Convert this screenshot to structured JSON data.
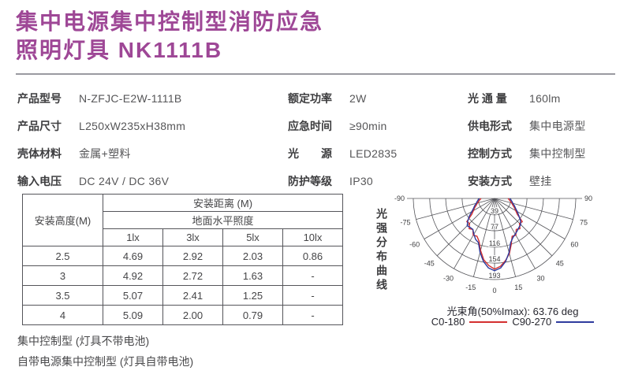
{
  "title": {
    "line1": "集中电源集中控制型消防应急",
    "line2": "照明灯具 NK1111B"
  },
  "specs": [
    {
      "label": "产品型号",
      "value": "N-ZFJC-E2W-1111B"
    },
    {
      "label": "额定功率",
      "value": "2W"
    },
    {
      "label": "光 通 量",
      "value": "160lm"
    },
    {
      "label": "产品尺寸",
      "value": "L250xW235xH38mm"
    },
    {
      "label": "应急时间",
      "value": "≥90min"
    },
    {
      "label": "供电形式",
      "value": "集中电源型"
    },
    {
      "label": "壳体材料",
      "value": "金属+塑料"
    },
    {
      "label": "光　　源",
      "value": "LED2835"
    },
    {
      "label": "控制方式",
      "value": "集中控制型"
    },
    {
      "label": "输入电压",
      "value": "DC 24V / DC 36V"
    },
    {
      "label": "防护等级",
      "value": "IP30"
    },
    {
      "label": "安装方式",
      "value": "壁挂"
    }
  ],
  "table": {
    "corner_header": "安装高度(M)",
    "span_header_1": "安装距离 (M)",
    "span_header_2": "地面水平照度",
    "lx_headers": [
      "1lx",
      "3lx",
      "5lx",
      "10lx"
    ],
    "rows": [
      [
        "2.5",
        "4.69",
        "2.92",
        "2.03",
        "0.86"
      ],
      [
        "3",
        "4.92",
        "2.72",
        "1.63",
        "-"
      ],
      [
        "3.5",
        "5.07",
        "2.41",
        "1.25",
        "-"
      ],
      [
        "4",
        "5.09",
        "2.00",
        "0.79",
        "-"
      ]
    ]
  },
  "chart_side_label": "光强分布曲线",
  "chart_data": {
    "type": "line",
    "subtype": "polar-intensity-distribution",
    "title": "光强分布曲线",
    "beam_angle_label": "光束角(50%Imax): 63.76 deg",
    "angle_ticks_deg": [
      -90,
      -75,
      -60,
      -45,
      -30,
      -15,
      0,
      15,
      30,
      45,
      60,
      75,
      90
    ],
    "ring_values": [
      39,
      77,
      116,
      154,
      193
    ],
    "angles_deg": [
      -90,
      -85,
      -80,
      -75,
      -70,
      -65,
      -60,
      -55,
      -50,
      -45,
      -40,
      -35,
      -30,
      -25,
      -20,
      -15,
      -10,
      -5,
      0,
      5,
      10,
      15,
      20,
      25,
      30,
      35,
      40,
      45,
      50,
      55,
      60,
      65,
      70,
      75,
      80,
      85,
      90
    ],
    "series": [
      {
        "name": "C0-180",
        "color": "#d42f2f",
        "values": [
          32,
          35,
          38,
          42,
          46,
          52,
          58,
          66,
          86,
          84,
          94,
          90,
          101,
          99,
          108,
          128,
          148,
          160,
          168,
          162,
          150,
          136,
          116,
          99,
          101,
          90,
          94,
          84,
          86,
          66,
          58,
          52,
          46,
          42,
          38,
          35,
          32
        ]
      },
      {
        "name": "C90-270",
        "color": "#2e3b9e",
        "values": [
          36,
          39,
          42,
          45,
          50,
          55,
          62,
          73,
          83,
          92,
          90,
          90,
          98,
          107,
          112,
          133,
          152,
          166,
          172,
          166,
          152,
          133,
          112,
          103,
          98,
          94,
          90,
          88,
          80,
          70,
          62,
          55,
          50,
          45,
          42,
          39,
          36
        ]
      }
    ],
    "grid_color": "#55555a",
    "legend_position": "bottom"
  },
  "notes": [
    "集中控制型 (灯具不带电池)",
    "自带电源集中控制型 (灯具自带电池)"
  ]
}
